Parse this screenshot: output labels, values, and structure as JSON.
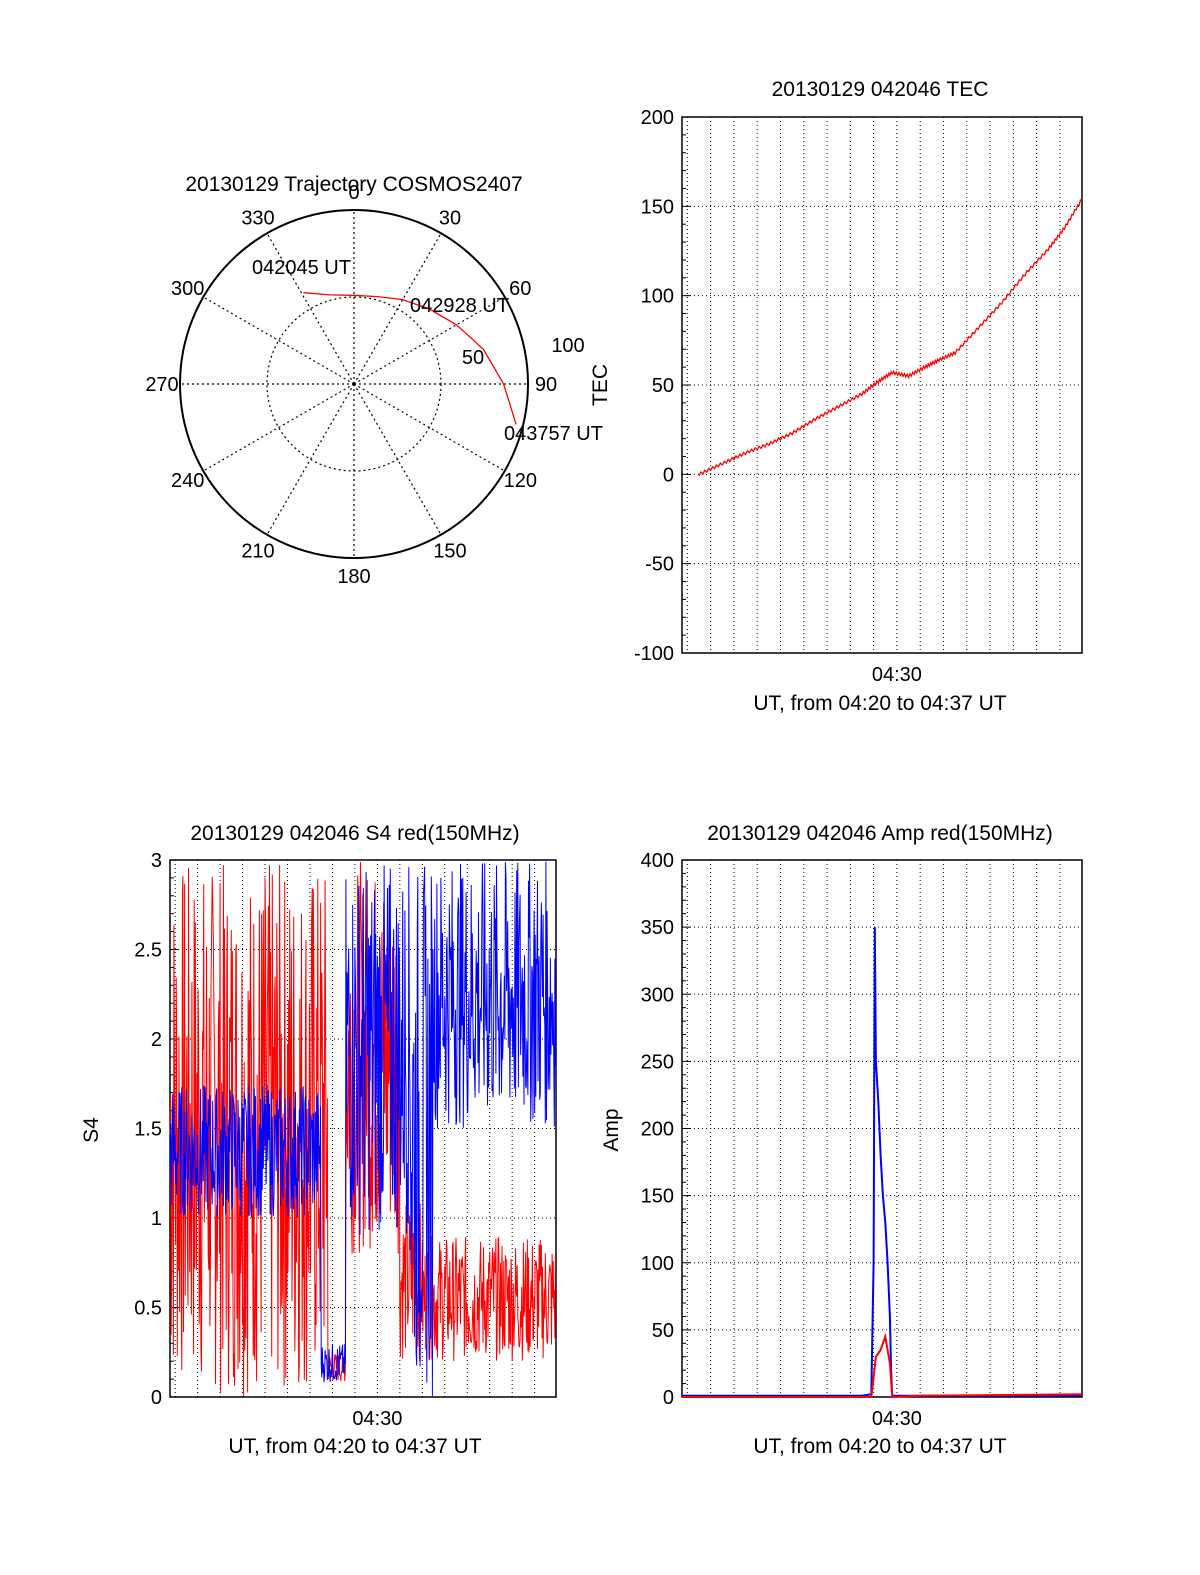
{
  "colors": {
    "red": "#ff0000",
    "blue": "#0000ff",
    "axis": "#000000",
    "grid": "#000000"
  },
  "chart_data": [
    {
      "type": "polar",
      "title": "20130129 Trajectory COSMOS2407",
      "azimuth_labels": [
        "0",
        "30",
        "60",
        "90",
        "120",
        "150",
        "180",
        "210",
        "240",
        "270",
        "300",
        "330"
      ],
      "radial_labels": [
        "50",
        "100"
      ],
      "radial_max": 100,
      "grid": true,
      "series": [
        {
          "color": "#ff0000",
          "points": [
            {
              "az": 331,
              "r": 60,
              "time": "042045 UT"
            },
            {
              "az": 345,
              "r": 53
            },
            {
              "az": 0,
              "r": 51
            },
            {
              "az": 15,
              "r": 52
            },
            {
              "az": 30,
              "r": 56
            },
            {
              "az": 45,
              "r": 61,
              "time": "042928 UT"
            },
            {
              "az": 60,
              "r": 68
            },
            {
              "az": 75,
              "r": 77
            },
            {
              "az": 90,
              "r": 86
            },
            {
              "az": 104,
              "r": 96,
              "time": "043757 UT"
            }
          ]
        }
      ],
      "annotations": [
        "042045 UT",
        "042928 UT",
        "043757 UT"
      ]
    },
    {
      "type": "line",
      "title": "20130129 042046 TEC",
      "xlabel": "UT, from 04:20 to 04:37 UT",
      "ylabel": "TEC",
      "xlim": [
        20.77,
        37.95
      ],
      "ylim": [
        -100,
        200
      ],
      "xtick_label": "04:30",
      "xtick_value": 30,
      "yticks": [
        -100,
        -50,
        0,
        50,
        100,
        150,
        200
      ],
      "grid": true,
      "series": [
        {
          "color": "#ff0000",
          "x": [
            21.5,
            22.5,
            23.5,
            24.5,
            25.5,
            26.5,
            27.5,
            28.5,
            29.2,
            29.8,
            30.5,
            31.2,
            31.8,
            32.5,
            33.5,
            34.5,
            35.5,
            36.5,
            37.2,
            37.95
          ],
          "y": [
            0,
            6,
            12,
            17,
            23,
            31,
            38,
            45,
            52,
            57,
            55,
            60,
            64,
            68,
            82,
            96,
            112,
            126,
            138,
            154
          ]
        }
      ]
    },
    {
      "type": "line",
      "title": "20130129 042046 S4 red(150MHz)",
      "xlabel": "UT, from 04:20 to 04:37 UT",
      "ylabel": "S4",
      "xlim": [
        20.77,
        37.95
      ],
      "ylim": [
        0,
        3
      ],
      "xtick_label": "04:30",
      "xtick_value": 30,
      "yticks": [
        "0",
        "0.5",
        "1",
        "1.5",
        "2",
        "2.5",
        "3"
      ],
      "grid": true,
      "series": [
        {
          "color": "#ff0000",
          "segments": [
            {
              "x0": 20.77,
              "x1": 27.8,
              "lo": 0.0,
              "hi": 3.0
            },
            {
              "x0": 27.8,
              "x1": 28.6,
              "lo": 0.08,
              "hi": 0.25
            },
            {
              "x0": 28.6,
              "x1": 31.0,
              "lo": 0.8,
              "hi": 3.0
            },
            {
              "x0": 31.0,
              "x1": 32.0,
              "lo": 0.2,
              "hi": 1.1
            },
            {
              "x0": 32.0,
              "x1": 37.95,
              "lo": 0.2,
              "hi": 0.9
            }
          ]
        },
        {
          "color": "#0000ff",
          "segments": [
            {
              "x0": 20.77,
              "x1": 27.5,
              "lo": 1.0,
              "hi": 1.75
            },
            {
              "x0": 27.5,
              "x1": 28.6,
              "lo": 0.08,
              "hi": 0.3
            },
            {
              "x0": 28.6,
              "x1": 31.5,
              "lo": 0.9,
              "hi": 3.0
            },
            {
              "x0": 31.5,
              "x1": 32.5,
              "lo": 0.0,
              "hi": 3.0
            },
            {
              "x0": 32.5,
              "x1": 37.95,
              "lo": 1.5,
              "hi": 3.0
            }
          ]
        }
      ]
    },
    {
      "type": "line",
      "title": "20130129 042046 Amp red(150MHz)",
      "xlabel": "UT, from 04:20 to 04:37 UT",
      "ylabel": "Amp",
      "xlim": [
        20.77,
        37.95
      ],
      "ylim": [
        0,
        400
      ],
      "xtick_label": "04:30",
      "xtick_value": 30,
      "yticks": [
        0,
        50,
        100,
        150,
        200,
        250,
        300,
        350,
        400
      ],
      "grid": true,
      "series": [
        {
          "color": "#0000ff",
          "x": [
            20.77,
            28.5,
            28.9,
            29.0,
            29.05,
            29.1,
            29.2,
            29.3,
            29.4,
            29.5,
            29.6,
            29.7,
            29.75,
            29.8,
            37.95
          ],
          "y": [
            1,
            1,
            2,
            100,
            350,
            250,
            220,
            180,
            150,
            130,
            100,
            60,
            20,
            1,
            1
          ]
        },
        {
          "color": "#ff0000",
          "x": [
            20.77,
            28.9,
            29.0,
            29.1,
            29.3,
            29.5,
            29.7,
            29.8,
            31.0,
            37.95
          ],
          "y": [
            0,
            0,
            15,
            30,
            35,
            45,
            25,
            0,
            1,
            2
          ]
        }
      ]
    }
  ]
}
